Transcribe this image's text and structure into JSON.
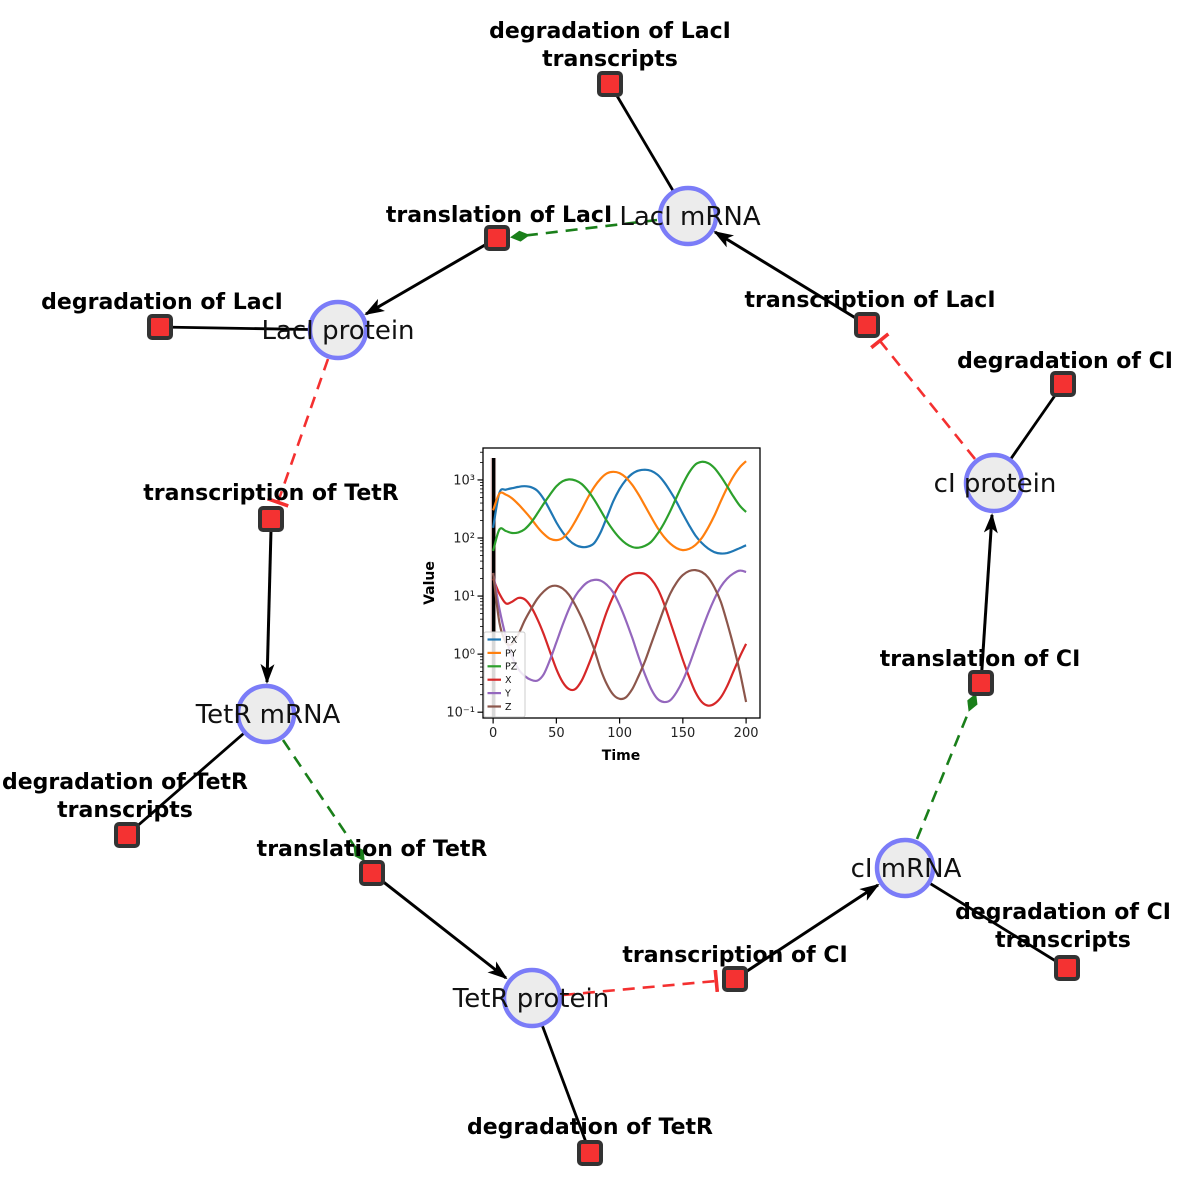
{
  "species": {
    "laci_mrna": {
      "label": "LacI mRNA"
    },
    "laci_protein": {
      "label": "LacI protein"
    },
    "ci_protein": {
      "label": "cI protein"
    },
    "tetr_mrna": {
      "label": "TetR mRNA"
    },
    "ci_mrna": {
      "label": "cI mRNA"
    },
    "tetr_protein": {
      "label": "TetR protein"
    }
  },
  "reactions": {
    "deg_laci_tx": {
      "line1": "degradation of LacI",
      "line2": "transcripts"
    },
    "translation_laci": {
      "label": "translation of LacI"
    },
    "transcription_laci": {
      "label": "transcription of LacI"
    },
    "deg_laci": {
      "label": "degradation of LacI"
    },
    "deg_ci": {
      "label": "degradation of CI"
    },
    "transcription_tetr": {
      "label": "transcription of TetR"
    },
    "translation_ci": {
      "label": "translation of CI"
    },
    "deg_tetr_tx": {
      "line1": "degradation of TetR",
      "line2": "transcripts"
    },
    "translation_tetr": {
      "label": "translation of TetR"
    },
    "transcription_ci": {
      "label": "transcription of CI"
    },
    "deg_ci_tx": {
      "line1": "degradation of CI",
      "line2": "transcripts"
    },
    "deg_tetr": {
      "label": "degradation of TetR"
    }
  },
  "network_edges": [
    {
      "source": "LacI mRNA",
      "target": "degradation of LacI transcripts",
      "type": "reactant"
    },
    {
      "source": "transcription of LacI",
      "target": "LacI mRNA",
      "type": "product"
    },
    {
      "source": "LacI mRNA",
      "target": "translation of LacI",
      "type": "modifier"
    },
    {
      "source": "translation of LacI",
      "target": "LacI protein",
      "type": "product"
    },
    {
      "source": "LacI protein",
      "target": "degradation of LacI",
      "type": "reactant"
    },
    {
      "source": "LacI protein",
      "target": "transcription of TetR",
      "type": "inhibition"
    },
    {
      "source": "transcription of TetR",
      "target": "TetR mRNA",
      "type": "product"
    },
    {
      "source": "TetR mRNA",
      "target": "degradation of TetR transcripts",
      "type": "reactant"
    },
    {
      "source": "TetR mRNA",
      "target": "translation of TetR",
      "type": "modifier"
    },
    {
      "source": "translation of TetR",
      "target": "TetR protein",
      "type": "product"
    },
    {
      "source": "TetR protein",
      "target": "degradation of TetR",
      "type": "reactant"
    },
    {
      "source": "TetR protein",
      "target": "transcription of CI",
      "type": "inhibition"
    },
    {
      "source": "transcription of CI",
      "target": "cI mRNA",
      "type": "product"
    },
    {
      "source": "cI mRNA",
      "target": "degradation of CI transcripts",
      "type": "reactant"
    },
    {
      "source": "cI mRNA",
      "target": "translation of CI",
      "type": "modifier"
    },
    {
      "source": "translation of CI",
      "target": "cI protein",
      "type": "product"
    },
    {
      "source": "cI protein",
      "target": "degradation of CI",
      "type": "reactant"
    },
    {
      "source": "cI protein",
      "target": "transcription of LacI",
      "type": "inhibition"
    }
  ],
  "colors": {
    "species_fill": "#ececec",
    "species_border": "#7b7cf8",
    "reaction_fill": "#f43232",
    "reaction_border": "#333333",
    "product_edge": "#000000",
    "modifier_edge": "#1a7f1a",
    "inhibition_edge": "#f43030"
  },
  "chart_data": {
    "type": "line",
    "title": "",
    "xlabel": "Time",
    "ylabel": "Value",
    "x_ticks": [
      0,
      50,
      100,
      150,
      200
    ],
    "y_tick_values": [
      -1,
      0,
      1,
      2,
      3
    ],
    "y_tick_labels": [
      "10⁻¹",
      "10⁰",
      "10¹",
      "10²",
      "10³"
    ],
    "xlim": [
      -8,
      211
    ],
    "ylog_lim": [
      -1.1,
      3.55
    ],
    "legend_position": "lower left",
    "legend": [
      "PX",
      "PY",
      "PZ",
      "X",
      "Y",
      "Z"
    ],
    "init_marker_x": 0,
    "x": [
      0,
      5,
      10,
      15,
      20,
      25,
      30,
      35,
      40,
      45,
      50,
      55,
      60,
      65,
      70,
      75,
      80,
      85,
      90,
      95,
      100,
      105,
      110,
      115,
      120,
      125,
      130,
      135,
      140,
      145,
      150,
      155,
      160,
      165,
      170,
      175,
      180,
      185,
      190,
      195,
      200
    ],
    "series": [
      {
        "name": "PX",
        "color": "#1f77b4",
        "values": [
          150,
          600,
          680,
          720,
          760,
          780,
          750,
          650,
          470,
          300,
          185,
          125,
          92,
          76,
          70,
          71,
          82,
          125,
          230,
          430,
          700,
          1000,
          1280,
          1450,
          1500,
          1430,
          1230,
          930,
          640,
          420,
          260,
          165,
          110,
          82,
          66,
          57,
          54,
          55,
          60,
          67,
          75
        ]
      },
      {
        "name": "PY",
        "color": "#ff7f0e",
        "values": [
          300,
          580,
          560,
          480,
          380,
          290,
          215,
          155,
          118,
          97,
          92,
          100,
          130,
          195,
          310,
          500,
          760,
          1050,
          1300,
          1380,
          1310,
          1100,
          820,
          560,
          360,
          230,
          150,
          105,
          80,
          67,
          62,
          65,
          76,
          100,
          150,
          245,
          430,
          730,
          1150,
          1650,
          2100
        ]
      },
      {
        "name": "PZ",
        "color": "#2ca02c",
        "values": [
          60,
          140,
          132,
          122,
          125,
          142,
          185,
          265,
          390,
          560,
          780,
          950,
          1020,
          980,
          850,
          650,
          455,
          300,
          195,
          135,
          100,
          80,
          70,
          68,
          73,
          86,
          118,
          178,
          290,
          500,
          850,
          1350,
          1850,
          2050,
          1950,
          1600,
          1150,
          780,
          520,
          360,
          280
        ]
      },
      {
        "name": "X",
        "color": "#d62728",
        "values": [
          20,
          11,
          7.5,
          8,
          9.3,
          8.8,
          6.5,
          4,
          2.2,
          1.1,
          0.55,
          0.33,
          0.25,
          0.25,
          0.35,
          0.62,
          1.2,
          2.6,
          5.5,
          10,
          16,
          21,
          24,
          25,
          24,
          19.5,
          13.5,
          7.5,
          3.6,
          1.7,
          0.8,
          0.4,
          0.22,
          0.15,
          0.13,
          0.14,
          0.18,
          0.28,
          0.5,
          0.9,
          1.5
        ]
      },
      {
        "name": "Y",
        "color": "#9467bd",
        "values": [
          25,
          6,
          2,
          0.9,
          0.55,
          0.42,
          0.36,
          0.35,
          0.45,
          0.8,
          1.6,
          3.2,
          6,
          10,
          14,
          17.5,
          19,
          18.5,
          15.5,
          11.5,
          7,
          3.8,
          1.9,
          0.9,
          0.45,
          0.25,
          0.17,
          0.15,
          0.16,
          0.22,
          0.35,
          0.65,
          1.3,
          2.6,
          5,
          9,
          14.5,
          20,
          24.5,
          27.5,
          26
        ]
      },
      {
        "name": "Z",
        "color": "#8c564b",
        "values": [
          25,
          3.5,
          1.6,
          1.5,
          2.2,
          3.8,
          6,
          9,
          12,
          14.5,
          15,
          13.5,
          10.5,
          7,
          4.2,
          2.3,
          1.2,
          0.55,
          0.3,
          0.2,
          0.17,
          0.18,
          0.25,
          0.42,
          0.75,
          1.5,
          3,
          6,
          11,
          17,
          23,
          27,
          28,
          26,
          21,
          14,
          8,
          3.5,
          1.4,
          0.5,
          0.15
        ]
      }
    ]
  }
}
